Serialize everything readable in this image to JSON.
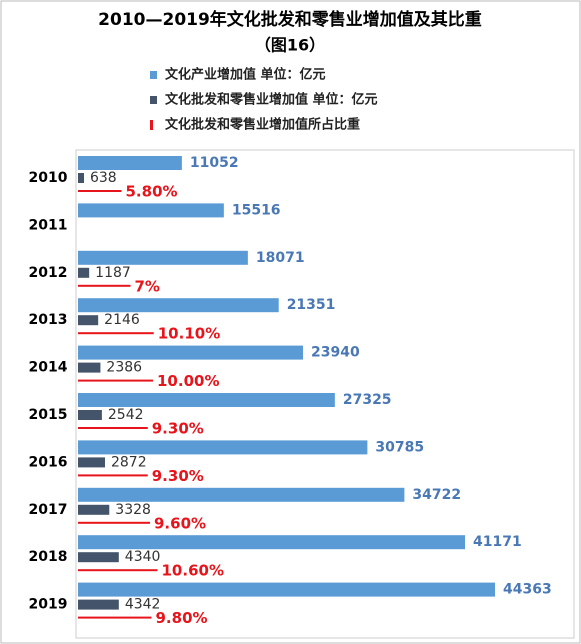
{
  "chart_data": {
    "type": "bar",
    "orientation": "horizontal",
    "title": "2010—2019年文化批发和零售业增加值及其比重",
    "subtitle": "（图16）",
    "categories": [
      "2010",
      "2011",
      "2012",
      "2013",
      "2014",
      "2015",
      "2016",
      "2017",
      "2018",
      "2019"
    ],
    "series": [
      {
        "name": "文化产业增加值 单位：亿元",
        "color": "#5b9bd5",
        "values": [
          11052,
          15516,
          18071,
          21351,
          23940,
          27325,
          30785,
          34722,
          41171,
          44363
        ]
      },
      {
        "name": "文化批发和零售业增加值 单位：亿元",
        "color": "#44546a",
        "values": [
          638,
          null,
          1187,
          2146,
          2386,
          2542,
          2872,
          3328,
          4340,
          4342
        ]
      },
      {
        "name": "文化批发和零售业增加值所占比重",
        "color": "#e8141b",
        "values": [
          5.8,
          null,
          7,
          10.1,
          10.0,
          9.3,
          9.3,
          9.6,
          10.6,
          9.8
        ],
        "value_labels": [
          "5.80%",
          null,
          "7%",
          "10.10%",
          "10.00%",
          "9.30%",
          "9.30%",
          "9.60%",
          "10.60%",
          "9.80%"
        ]
      }
    ]
  }
}
